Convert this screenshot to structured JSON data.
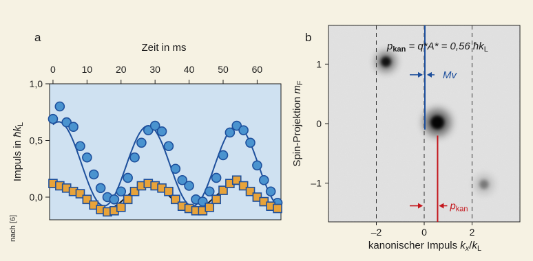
{
  "credit": "nach [6]",
  "chart_data": [
    {
      "panel": "a",
      "type": "scatter",
      "xlabel": "Zeit in ms",
      "ylabel_main": "Impuls in ",
      "ylabel_unit": "ħk",
      "ylabel_sub": "L",
      "xlim": [
        -1,
        67
      ],
      "ylim": [
        -0.2,
        1.0
      ],
      "xticks": [
        "0",
        "10",
        "20",
        "30",
        "40",
        "50",
        "60"
      ],
      "yticks": [
        "1,0",
        "0,5",
        "0,0"
      ],
      "background": "#cfe1f1",
      "series": [
        {
          "marker": "circle",
          "color": "#4a93cf",
          "edge": "#1d4f9c",
          "x": [
            0,
            2,
            4,
            6,
            8,
            10,
            12,
            14,
            16,
            18,
            20,
            22,
            24,
            26,
            28,
            30,
            32,
            34,
            36,
            38,
            40,
            42,
            44,
            46,
            48,
            50,
            52,
            54,
            56,
            58,
            60,
            62,
            64,
            66
          ],
          "y": [
            0.69,
            0.8,
            0.66,
            0.62,
            0.45,
            0.35,
            0.2,
            0.08,
            0.0,
            -0.02,
            0.05,
            0.17,
            0.35,
            0.48,
            0.59,
            0.63,
            0.58,
            0.45,
            0.25,
            0.15,
            0.1,
            -0.02,
            -0.04,
            0.05,
            0.17,
            0.37,
            0.57,
            0.63,
            0.59,
            0.48,
            0.28,
            0.15,
            0.05,
            -0.05
          ]
        },
        {
          "marker": "square",
          "color": "#e8a33a",
          "edge": "#1d4f9c",
          "x": [
            0,
            2,
            4,
            6,
            8,
            10,
            12,
            14,
            16,
            18,
            20,
            22,
            24,
            26,
            28,
            30,
            32,
            34,
            36,
            38,
            40,
            42,
            44,
            46,
            48,
            50,
            52,
            54,
            56,
            58,
            60,
            62,
            64,
            66
          ],
          "y": [
            0.12,
            0.1,
            0.08,
            0.05,
            0.03,
            -0.02,
            -0.07,
            -0.11,
            -0.13,
            -0.12,
            -0.09,
            -0.02,
            0.05,
            0.1,
            0.12,
            0.1,
            0.08,
            0.05,
            -0.02,
            -0.08,
            -0.1,
            -0.12,
            -0.12,
            -0.09,
            -0.02,
            0.06,
            0.12,
            0.15,
            0.1,
            0.05,
            0.0,
            -0.04,
            -0.08,
            -0.1
          ]
        }
      ],
      "fits": [
        {
          "color": "#1d4f9c",
          "offset": 0.275,
          "amplitude": 0.355,
          "period": 26,
          "phase": -1.7,
          "start_boost": 0.05
        },
        {
          "color": "#1a1a1a",
          "offset": 0.0,
          "amplitude": 0.115,
          "period": 26,
          "phase": -1.7,
          "start_boost": 0
        }
      ]
    },
    {
      "panel": "b",
      "type": "heatmap",
      "xlabel_parts": [
        "kanonischer Impuls ",
        "k",
        "x",
        "/",
        "k",
        "L"
      ],
      "ylabel_parts": [
        "Spin-Projektion ",
        "m",
        "F"
      ],
      "xlim": [
        -4,
        4
      ],
      "ylim": [
        -1.65,
        1.65
      ],
      "xticks": [
        {
          "v": -2,
          "t": "–2"
        },
        {
          "v": 0,
          "t": "0"
        },
        {
          "v": 2,
          "t": "2"
        }
      ],
      "yticks": [
        {
          "v": 1,
          "t": "1"
        },
        {
          "v": 0,
          "t": "0"
        },
        {
          "v": -1,
          "t": "–1"
        }
      ],
      "dashed_x": [
        -2,
        0,
        2
      ],
      "spots": [
        {
          "x": -1.6,
          "y": 1.04,
          "intensity": 0.9,
          "size": 0.55
        },
        {
          "x": 0.55,
          "y": 0.02,
          "intensity": 1.0,
          "size": 0.75
        },
        {
          "x": 2.5,
          "y": -1.02,
          "intensity": 0.35,
          "size": 0.5
        }
      ],
      "blue_line": {
        "x": 0.0,
        "y_from": -0.1,
        "y_to": 1.65,
        "color": "#1d4f9c"
      },
      "red_line": {
        "x": 0.56,
        "y_from": -1.65,
        "y_to": -0.2,
        "color": "#c4161c"
      },
      "blue_arrow_label": "Mv",
      "red_arrow_label_main": "p",
      "red_arrow_label_sub": "kan",
      "formula_p": "p",
      "formula_sub": "kan",
      "formula_rest": " = q*A* = 0,56 ħk",
      "formula_sub2": "L"
    }
  ]
}
